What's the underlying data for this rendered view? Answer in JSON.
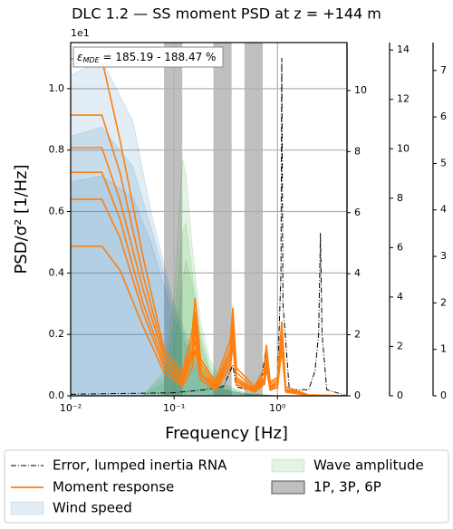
{
  "chart_data": {
    "type": "psd",
    "title": "DLC 1.2 — SS moment PSD at z = +144 m",
    "xlabel": "Frequency [Hz]",
    "ylabel": "PSD/σ² [1/Hz]",
    "y_offset_label": "1e1",
    "annotation": {
      "symbol": "ε",
      "subscript": "MDE",
      "text": " = 185.19 - 188.47 %"
    },
    "xscale": "log",
    "grid": true,
    "xlim": [
      0.01,
      4.7
    ],
    "xticks": [
      {
        "value": 0.01,
        "label": "10⁻²"
      },
      {
        "value": 0.1,
        "label": "10⁻¹"
      },
      {
        "value": 1,
        "label": "10⁰"
      }
    ],
    "ylim": [
      0,
      1.15
    ],
    "yticks": [
      {
        "value": 0,
        "label": "0.0"
      },
      {
        "value": 0.2,
        "label": "0.2"
      },
      {
        "value": 0.4,
        "label": "0.4"
      },
      {
        "value": 0.6,
        "label": "0.6"
      },
      {
        "value": 0.8,
        "label": "0.8"
      },
      {
        "value": 1,
        "label": "1.0"
      }
    ],
    "extra_axes": [
      {
        "color": "#1f77b4",
        "ylim": [
          0,
          11.57
        ],
        "yticks": [
          0,
          2,
          4,
          6,
          8,
          10
        ]
      },
      {
        "color": "#2ca02c",
        "ylim": [
          0,
          14.3
        ],
        "yticks": [
          0,
          2,
          4,
          6,
          8,
          10,
          12,
          14
        ]
      },
      {
        "color": "#ff7f0e",
        "ylim": [
          0,
          7.6
        ],
        "yticks": [
          0,
          1,
          2,
          3,
          4,
          5,
          6,
          7
        ]
      }
    ],
    "bands": {
      "name": "1P, 3P, 6P",
      "color": "#808080",
      "ranges": [
        [
          0.08,
          0.12
        ],
        [
          0.24,
          0.36
        ],
        [
          0.48,
          0.72
        ]
      ]
    },
    "series": [
      {
        "name": "Wind speed",
        "style": "area",
        "color": "#1f77b4",
        "axis": 1,
        "x": [
          0.01,
          0.02,
          0.04,
          0.06,
          0.1,
          0.15,
          0.2,
          0.3,
          0.5,
          1,
          4.7
        ],
        "values": [
          [
            10.5,
            11,
            9,
            6,
            3,
            1.5,
            0.7,
            0.2,
            0.05,
            0,
            0
          ],
          [
            8.5,
            8.8,
            7.5,
            5.5,
            2.8,
            1.3,
            0.6,
            0.2,
            0.05,
            0,
            0
          ],
          [
            7,
            7.2,
            6.5,
            5,
            2.5,
            1.2,
            0.5,
            0.15,
            0.04,
            0,
            0
          ]
        ]
      },
      {
        "name": "Wave amplitude",
        "style": "area",
        "color": "#2ca02c",
        "axis": 2,
        "x": [
          0.05,
          0.08,
          0.1,
          0.12,
          0.13,
          0.15,
          0.18,
          0.22,
          0.3,
          0.5,
          1
        ],
        "values": [
          [
            0,
            1,
            4,
            9.6,
            9,
            6,
            3,
            1.5,
            0.5,
            0.1,
            0
          ],
          [
            0,
            0.8,
            3,
            6.5,
            7,
            5,
            2.5,
            1.2,
            0.4,
            0.1,
            0
          ],
          [
            0,
            0.5,
            2,
            4.5,
            5.5,
            4.5,
            2.2,
            1,
            0.3,
            0.05,
            0
          ]
        ]
      },
      {
        "name": "Error, lumped inertia RNA",
        "style": "dashdot",
        "color": "#000000",
        "axis": 0,
        "x": [
          0.01,
          0.1,
          0.2,
          0.3,
          0.37,
          0.4,
          0.5,
          0.7,
          0.77,
          0.85,
          1.0,
          1.08,
          1.1,
          1.13,
          1.3,
          2.0,
          2.3,
          2.5,
          2.6,
          2.7,
          3.0,
          4.7
        ],
        "values": [
          [
            0.005,
            0.01,
            0.02,
            0.03,
            0.1,
            0.03,
            0.02,
            0.05,
            0.15,
            0.02,
            0.05,
            0.4,
            1.1,
            0.3,
            0.02,
            0.02,
            0.08,
            0.2,
            0.53,
            0.2,
            0.02,
            0
          ]
        ]
      },
      {
        "name": "Moment response",
        "style": "line",
        "color": "#ff7f0e",
        "axis": 3,
        "x": [
          0.01,
          0.02,
          0.03,
          0.05,
          0.08,
          0.12,
          0.15,
          0.16,
          0.18,
          0.25,
          0.35,
          0.37,
          0.4,
          0.6,
          0.75,
          0.78,
          0.85,
          1.0,
          1.1,
          1.2,
          2,
          4.7
        ],
        "values": [
          [
            7.25,
            7.25,
            5.5,
            3,
            1,
            0.5,
            1.4,
            2.1,
            0.8,
            0.3,
            1.2,
            1.9,
            0.6,
            0.2,
            0.6,
            1.1,
            0.3,
            0.4,
            1.6,
            0.2,
            0.02,
            0
          ],
          [
            6.04,
            6.04,
            4.8,
            2.6,
            0.9,
            0.4,
            1.2,
            1.8,
            0.7,
            0.25,
            1.0,
            1.7,
            0.5,
            0.15,
            0.5,
            1.0,
            0.25,
            0.35,
            1.5,
            0.15,
            0.02,
            0
          ],
          [
            5.34,
            5.34,
            4.2,
            2.3,
            0.8,
            0.35,
            1.0,
            1.6,
            0.6,
            0.2,
            0.9,
            1.5,
            0.4,
            0.12,
            0.4,
            0.9,
            0.2,
            0.3,
            1.4,
            0.12,
            0.01,
            0
          ],
          [
            4.81,
            4.81,
            3.8,
            2,
            0.7,
            0.3,
            0.9,
            1.4,
            0.5,
            0.18,
            0.8,
            1.4,
            0.35,
            0.1,
            0.35,
            0.8,
            0.18,
            0.25,
            1.3,
            0.1,
            0.01,
            0
          ],
          [
            4.23,
            4.23,
            3.4,
            1.8,
            0.6,
            0.25,
            0.8,
            1.2,
            0.45,
            0.15,
            0.7,
            1.3,
            0.3,
            0.1,
            0.3,
            0.7,
            0.15,
            0.2,
            1.2,
            0.1,
            0.01,
            0
          ],
          [
            3.22,
            3.22,
            2.7,
            1.5,
            0.5,
            0.2,
            0.6,
            1.0,
            0.35,
            0.12,
            0.6,
            1.1,
            0.25,
            0.08,
            0.25,
            0.6,
            0.12,
            0.18,
            1.0,
            0.08,
            0.01,
            0
          ]
        ]
      }
    ]
  }
}
